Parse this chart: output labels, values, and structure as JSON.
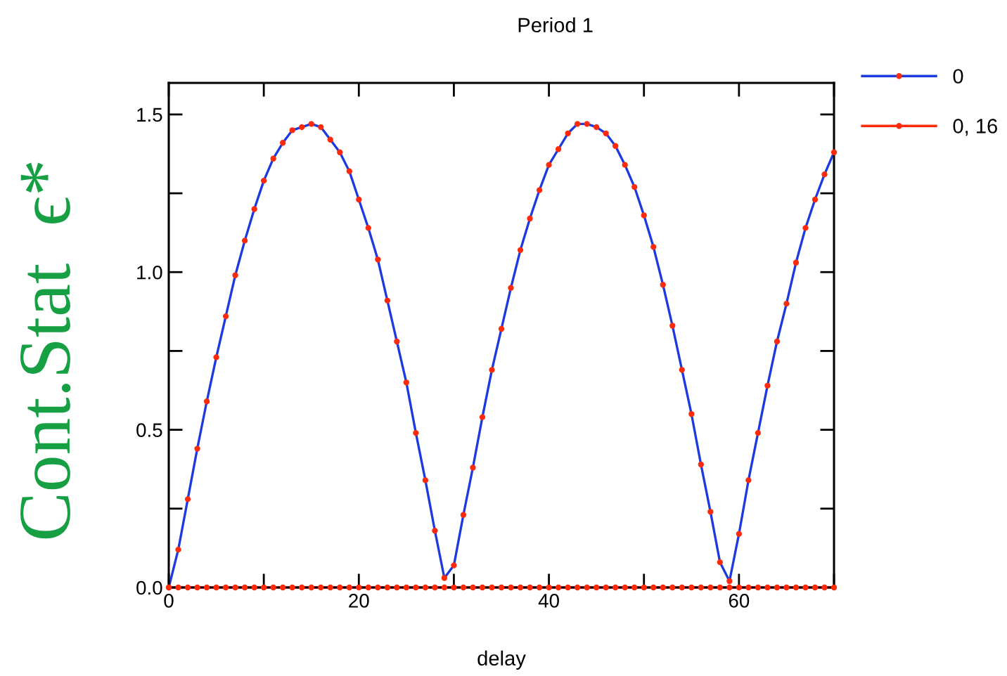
{
  "chart_data": {
    "type": "line",
    "title": "Period 1",
    "xlabel": "delay",
    "ylabel": "Cont.Stat  ϵ*",
    "x": [
      0,
      1,
      2,
      3,
      4,
      5,
      6,
      7,
      8,
      9,
      10,
      11,
      12,
      13,
      14,
      15,
      16,
      17,
      18,
      19,
      20,
      21,
      22,
      23,
      24,
      25,
      26,
      27,
      28,
      29,
      30,
      31,
      32,
      33,
      34,
      35,
      36,
      37,
      38,
      39,
      40,
      41,
      42,
      43,
      44,
      45,
      46,
      47,
      48,
      49,
      50,
      51,
      52,
      53,
      54,
      55,
      56,
      57,
      58,
      59,
      60,
      61,
      62,
      63,
      64,
      65,
      66,
      67,
      68,
      69,
      70
    ],
    "series": [
      {
        "name": "0",
        "color": "#1c3ae0",
        "colors": [
          "#ff2a0a",
          "#ff2a0a",
          "#ff2a0a",
          "#ff2a0a",
          "#ff2a0a",
          "#ff2a0a",
          "#ff2a0a",
          "#ff2a0a",
          "#ff2a0a",
          "#ff2a0a",
          "#ff2a0a",
          "#ff2a0a",
          "#ff2a0a",
          "#ff2a0a",
          "#ff2a0a",
          "#ff2a0a",
          "#ff2a0a",
          "#ff2a0a",
          "#ff2a0a",
          "#ff2a0a",
          "#ff2a0a",
          "#ff2a0a",
          "#ff2a0a",
          "#ff2a0a",
          "#ff2a0a",
          "#ff2a0a",
          "#ff2a0a",
          "#ff2a0a",
          "#ff2a0a",
          "#ff2a0a",
          "#ff2a0a",
          "#ff2a0a",
          "#ff2a0a",
          "#ff2a0a",
          "#ff2a0a",
          "#ff2a0a",
          "#ff2a0a",
          "#ff2a0a",
          "#ff2a0a",
          "#ff2a0a",
          "#ff2a0a",
          "#ff2a0a",
          "#ff2a0a",
          "#ff2a0a",
          "#ff2a0a",
          "#ff2a0a",
          "#ff2a0a",
          "#ff2a0a",
          "#ff2a0a",
          "#ff2a0a",
          "#ff2a0a",
          "#ff2a0a",
          "#ff2a0a",
          "#ff2a0a",
          "#ff2a0a",
          "#ff2a0a",
          "#ff2a0a",
          "#ff2a0a",
          "#ff2a0a",
          "#ff2a0a",
          "#ff2a0a",
          "#ff2a0a",
          "#ff2a0a",
          "#ff2a0a",
          "#ff2a0a",
          "#ff2a0a",
          "#ff2a0a",
          "#ff2a0a",
          "#ff2a0a",
          "#ff2a0a",
          "#ff2a0a"
        ],
        "values": [
          0,
          0.12,
          0.28,
          0.44,
          0.59,
          0.73,
          0.86,
          0.99,
          1.1,
          1.2,
          1.29,
          1.36,
          1.41,
          1.45,
          1.46,
          1.47,
          1.46,
          1.42,
          1.38,
          1.32,
          1.23,
          1.14,
          1.04,
          0.91,
          0.78,
          0.65,
          0.49,
          0.34,
          0.18,
          0.03,
          0.07,
          0.23,
          0.38,
          0.54,
          0.69,
          0.82,
          0.95,
          1.07,
          1.17,
          1.26,
          1.34,
          1.39,
          1.44,
          1.47,
          1.47,
          1.46,
          1.44,
          1.4,
          1.34,
          1.27,
          1.18,
          1.08,
          0.96,
          0.83,
          0.69,
          0.55,
          0.39,
          0.24,
          0.08,
          0.02,
          0.17,
          0.34,
          0.49,
          0.64,
          0.78,
          0.9,
          1.03,
          1.14,
          1.23,
          1.31,
          1.38
        ]
      },
      {
        "name": "0, 16",
        "color": "#ff2a0a",
        "values": [
          0,
          0,
          0,
          0,
          0,
          0,
          0,
          0,
          0,
          0,
          0,
          0,
          0,
          0,
          0,
          0,
          0,
          0,
          0,
          0,
          0,
          0,
          0,
          0,
          0,
          0,
          0,
          0,
          0,
          0,
          0,
          0,
          0,
          0,
          0,
          0,
          0,
          0,
          0,
          0,
          0,
          0,
          0,
          0,
          0,
          0,
          0,
          0,
          0,
          0,
          0,
          0,
          0,
          0,
          0,
          0,
          0,
          0,
          0,
          0,
          0,
          0,
          0,
          0,
          0,
          0,
          0,
          0,
          0,
          0,
          0
        ]
      }
    ],
    "xlim": [
      0,
      70
    ],
    "ylim": [
      0,
      1.6
    ],
    "xticks": [
      0,
      {
        "value": 10,
        "label": null
      },
      20,
      {
        "value": 30,
        "label": null
      },
      40,
      {
        "value": 50,
        "label": null
      },
      60,
      {
        "value": 70,
        "label": null
      }
    ],
    "yticks": [
      {
        "value": 0,
        "label": "0.0"
      },
      {
        "value": 0.25,
        "label": null
      },
      0.5,
      {
        "value": 0.75,
        "label": null
      },
      {
        "value": 1,
        "label": "1.0"
      },
      {
        "value": 1.25,
        "label": null
      },
      1.5
    ],
    "marker": "circle",
    "line_style": "solid",
    "legend": "top right"
  }
}
